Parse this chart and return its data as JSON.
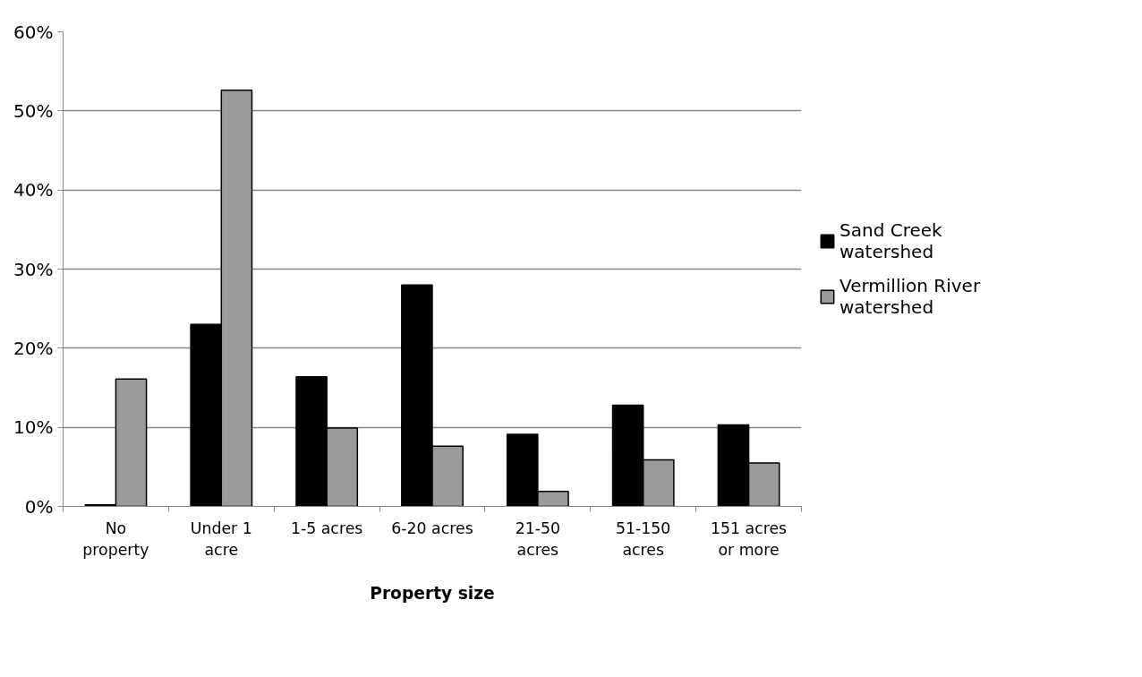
{
  "chart_data": {
    "type": "bar",
    "xlabel": "Property size",
    "categories": [
      "No property",
      "Under 1 acre",
      "1-5 acres",
      "6-20 acres",
      "21-50 acres",
      "51-150 acres",
      "151 acres or more"
    ],
    "series": [
      {
        "name": "Sand Creek watershed",
        "color": "#000000",
        "values": [
          0.2,
          23.0,
          16.4,
          28.0,
          9.1,
          12.8,
          10.3
        ]
      },
      {
        "name": "Vermillion River watershed",
        "color": "#9a9a9a",
        "values": [
          16.1,
          52.6,
          9.9,
          7.6,
          1.9,
          5.9,
          5.5
        ]
      }
    ],
    "ylim": [
      0,
      60
    ],
    "yticks": [
      {
        "value": 0,
        "label": "0%"
      },
      {
        "value": 10,
        "label": "10%"
      },
      {
        "value": 20,
        "label": "20%"
      },
      {
        "value": 30,
        "label": "30%"
      },
      {
        "value": 40,
        "label": "40%"
      },
      {
        "value": 50,
        "label": "50%"
      },
      {
        "value": 60,
        "label": "60%"
      }
    ],
    "grid": "y",
    "legend": "right"
  }
}
